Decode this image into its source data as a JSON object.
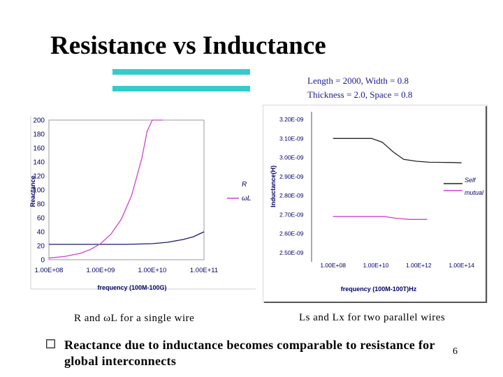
{
  "slide": {
    "title": "Resistance vs Inductance",
    "params_line1": "Length = 2000, Width = 0.8",
    "params_line2": "Thickness = 2.0, Space = 0.8",
    "caption_left": "R and ωL for a single wire",
    "caption_right": "Ls and Lx for two parallel wires",
    "bullet_line1": "Reactance due to inductance becomes comparable to resistance for",
    "bullet_line2": "global interconnects",
    "page_number": "6",
    "accent_color": "#33cccc"
  },
  "chart_data": [
    {
      "type": "line",
      "title": "",
      "xlabel": "frequency (100M-100G)",
      "ylabel": "Reactance",
      "x_scale": "log",
      "xlim": [
        8,
        11
      ],
      "x_ticks": [
        8,
        9,
        10,
        11
      ],
      "x_tick_labels": [
        "1.00E+08",
        "1.00E+09",
        "1.00E+10",
        "1.00E+11"
      ],
      "ylim": [
        0,
        200
      ],
      "y_ticks": [
        0,
        20,
        40,
        60,
        80,
        100,
        120,
        140,
        160,
        180,
        200
      ],
      "y_tick_labels": [
        "0",
        "20",
        "40",
        "60",
        "80",
        "100",
        "120",
        "140",
        "160",
        "180",
        "200"
      ],
      "legend": [
        "R",
        "ωL"
      ],
      "series": [
        {
          "name": "R",
          "color": "#1a1a6e",
          "x": [
            8,
            8.5,
            9,
            9.5,
            10,
            10.3,
            10.6,
            10.8,
            11
          ],
          "y": [
            22,
            22,
            22,
            22,
            23,
            25,
            29,
            33,
            40
          ]
        },
        {
          "name": "ωL",
          "color": "#cc44cc",
          "x": [
            8,
            8.3,
            8.6,
            8.8,
            9,
            9.2,
            9.4,
            9.6,
            9.8,
            9.9,
            10,
            10.1,
            10.2
          ],
          "y": [
            2.3,
            4.6,
            9,
            14.5,
            23,
            36.5,
            58,
            92,
            146,
            184,
            200,
            200,
            200
          ]
        }
      ]
    },
    {
      "type": "line",
      "title": "",
      "xlabel": "frequency (100M-100T)Hz",
      "ylabel": "Inductance(H)",
      "x_scale": "log",
      "xlim": [
        7,
        14.5
      ],
      "x_ticks": [
        8,
        10,
        12,
        14
      ],
      "x_tick_labels": [
        "1.00E+08",
        "1.00E+10",
        "1.00E+12",
        "1.00E+14"
      ],
      "ylim": [
        2.5e-09,
        3.2e-09
      ],
      "y_ticks": [
        2.5e-09,
        2.6e-09,
        2.7e-09,
        2.8e-09,
        2.9e-09,
        3e-09,
        3.1e-09,
        3.2e-09
      ],
      "y_tick_labels": [
        "2.50E-09",
        "2.60E-09",
        "2.70E-09",
        "2.80E-09",
        "2.90E-09",
        "3.00E-09",
        "3.10E-09",
        "3.20E-09"
      ],
      "legend": [
        "Self",
        "mutual"
      ],
      "series": [
        {
          "name": "Self",
          "color": "#222222",
          "x": [
            8,
            9,
            9.8,
            10.3,
            10.8,
            11.3,
            11.9,
            12.5,
            13.5,
            14
          ],
          "y": [
            3.1e-09,
            3.1e-09,
            3.1e-09,
            3.08e-09,
            3.03e-09,
            2.99e-09,
            2.98e-09,
            2.975e-09,
            2.974e-09,
            2.972e-09
          ]
        },
        {
          "name": "mutual",
          "color": "#cc44cc",
          "x": [
            8,
            9,
            10.4,
            11,
            11.6,
            12.4
          ],
          "y": [
            2.69e-09,
            2.69e-09,
            2.69e-09,
            2.68e-09,
            2.675e-09,
            2.675e-09
          ]
        }
      ]
    }
  ]
}
